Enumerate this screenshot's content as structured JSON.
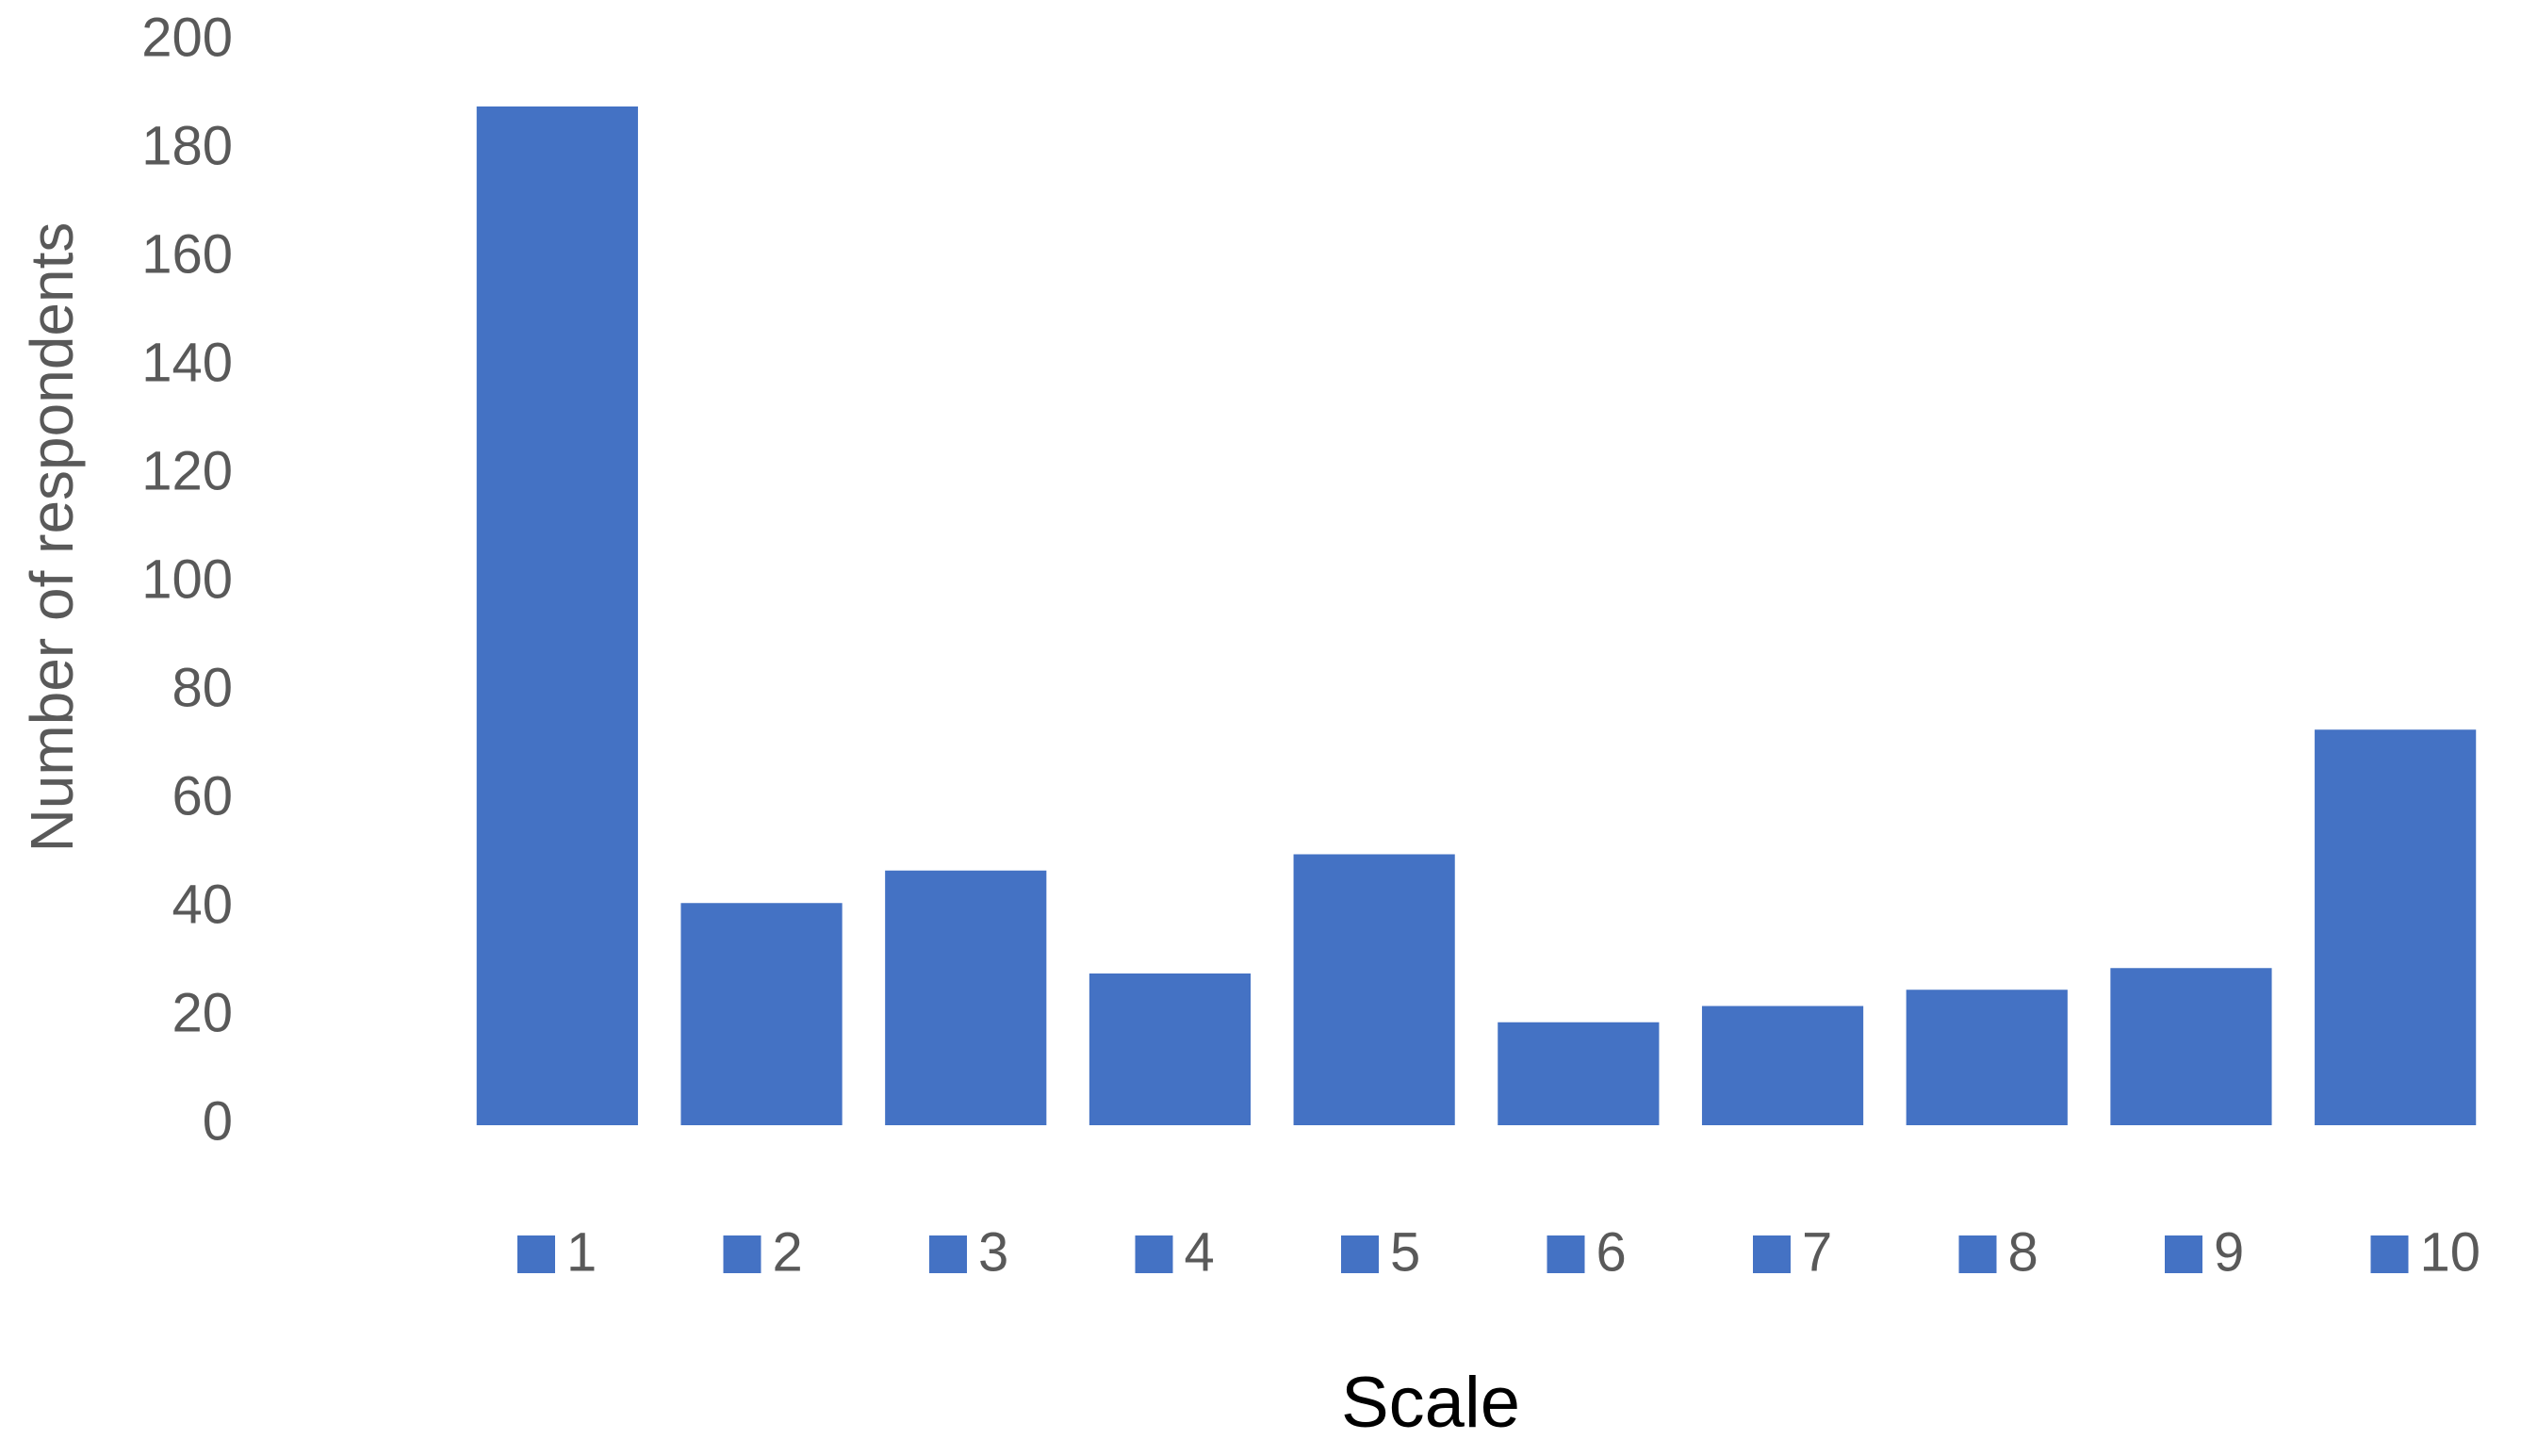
{
  "chart_data": {
    "type": "bar",
    "x_label": "Scale",
    "y_label": "Number of respondents",
    "categories": [
      "1",
      "2",
      "3",
      "4",
      "5",
      "6",
      "7",
      "8",
      "9",
      "10"
    ],
    "values": [
      188,
      41,
      47,
      28,
      50,
      19,
      22,
      25,
      29,
      73
    ],
    "color": "#4472c4",
    "ylim": [
      0,
      200
    ],
    "yticks": [
      0,
      20,
      40,
      60,
      80,
      100,
      120,
      140,
      160,
      180,
      200
    ],
    "grid": false,
    "legend": "bottom"
  }
}
